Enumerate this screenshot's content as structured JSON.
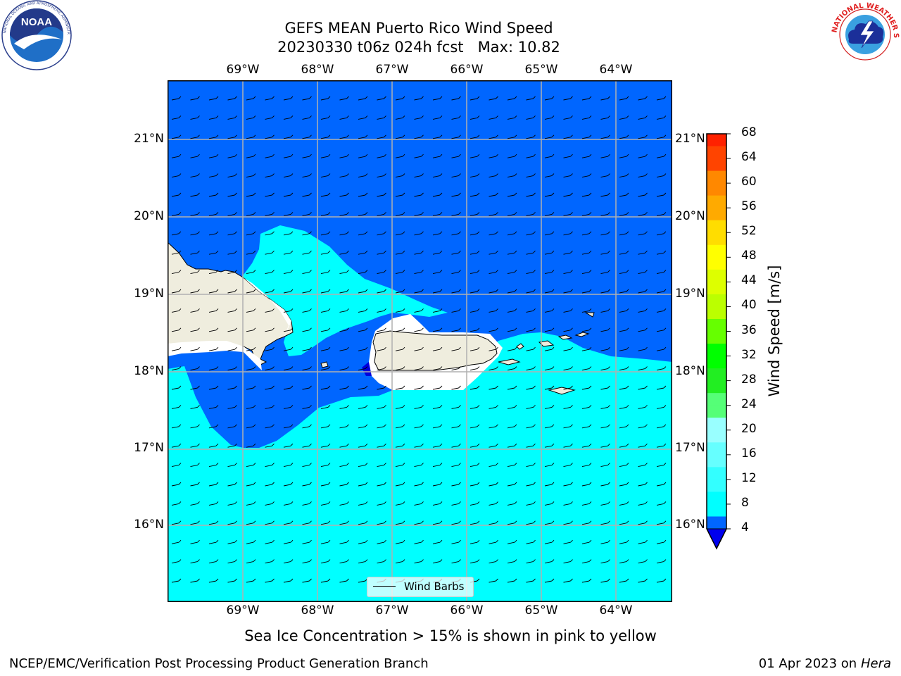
{
  "title": {
    "line1": "GEFS MEAN Puerto Rico Wind Speed",
    "line2": "20230330 t06z 024h fcst   Max: 10.82"
  },
  "map": {
    "lon_ticks": [
      "69°W",
      "68°W",
      "67°W",
      "66°W",
      "65°W",
      "64°W"
    ],
    "lat_ticks": [
      "21°N",
      "20°N",
      "19°N",
      "18°N",
      "17°N",
      "16°N"
    ],
    "colors": {
      "field_4_8": "#0066ff",
      "field_8_12": "#00ffff",
      "field_lt_4": "#0000dd",
      "land": "#efedde",
      "grid": "#b0b0b0"
    },
    "grid": true
  },
  "colorbar": {
    "label": "Wind Speed [m/s]",
    "ticks": [
      "4",
      "8",
      "12",
      "16",
      "20",
      "24",
      "28",
      "32",
      "36",
      "40",
      "44",
      "48",
      "52",
      "56",
      "60",
      "64",
      "68"
    ],
    "colors": [
      "#0066ff",
      "#00ffff",
      "#33ffff",
      "#66ffff",
      "#99ffff",
      "#55ff77",
      "#22ee22",
      "#00ff00",
      "#66ff00",
      "#bbff00",
      "#ddff00",
      "#ffff00",
      "#ffdd00",
      "#ffaa00",
      "#ff8800",
      "#ff4400",
      "#ff2200",
      "#ff0000"
    ],
    "under_color": "#0000ee"
  },
  "legend": {
    "label": "Wind Barbs"
  },
  "note": "Sea Ice Concentration > 15% is shown in pink to yellow",
  "footer": {
    "left": "NCEP/EMC/Verification Post Processing Product Generation Branch",
    "right_prefix": "01 Apr 2023 on ",
    "right_italic": "Hera"
  },
  "logos": {
    "noaa": "NOAA",
    "noaa_ring": "NATIONAL OCEANIC AND ATMOSPHERIC ADMINISTRATION · U.S. DEPARTMENT OF COMMERCE",
    "nws_ring": "NATIONAL WEATHER SERVICE"
  }
}
